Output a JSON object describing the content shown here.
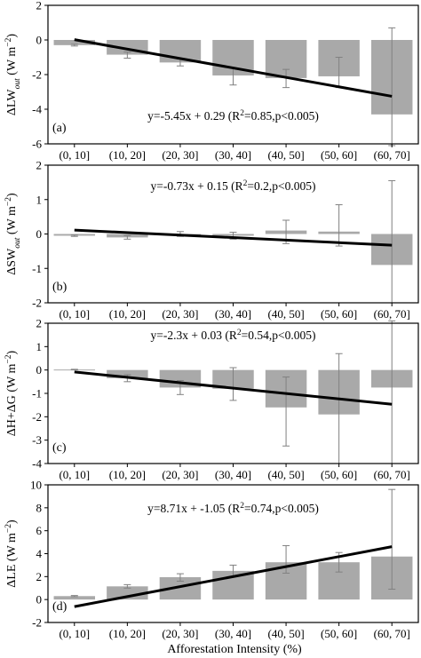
{
  "figure": {
    "xlabel": "Afforestation Intensity (%)",
    "colors": {
      "bar": "#a9a9a9",
      "error": "#808080",
      "fit": "#000000",
      "axis": "#000000"
    }
  },
  "chart_data": [
    {
      "type": "bar",
      "panel_label": "(a)",
      "ylabel_parts": [
        "ΔLW",
        "out",
        " (W m",
        "−2",
        ")"
      ],
      "equation_parts": [
        "y=-5.45x + 0.29 (R",
        "2",
        "=0.85,p<0.005)"
      ],
      "categories": [
        "(0, 10]",
        "(10, 20]",
        "(20, 30]",
        "(30, 40]",
        "(40, 50]",
        "(50, 60]",
        "(60, 70]"
      ],
      "values": [
        -0.3,
        -0.85,
        -1.3,
        -2.05,
        -2.2,
        -2.1,
        -4.3
      ],
      "error_low": [
        -0.35,
        -1.05,
        -1.5,
        -2.6,
        -2.75,
        -2.75,
        -6.1
      ],
      "error_high": [
        -0.25,
        -0.7,
        -1.1,
        -1.6,
        -1.7,
        -1.0,
        0.7
      ],
      "fit": {
        "slope": -5.45,
        "intercept": 0.29,
        "x_start": 0.05,
        "x_end": 0.65
      },
      "ylim": [
        -6,
        2
      ],
      "yticks": [
        -6,
        -4,
        -2,
        0,
        2
      ],
      "legend": "none",
      "grid": false
    },
    {
      "type": "bar",
      "panel_label": "(b)",
      "ylabel_parts": [
        "ΔSW",
        "out",
        " (W m",
        "−2",
        ")"
      ],
      "equation_parts": [
        "y=-0.73x + 0.15 (R",
        "2",
        "=0.2,p<0.005)"
      ],
      "categories": [
        "(0, 10]",
        "(10, 20]",
        "(20, 30]",
        "(30, 40]",
        "(40, 50]",
        "(50, 60]",
        "(60, 70]"
      ],
      "values": [
        -0.05,
        -0.1,
        0.0,
        -0.05,
        0.1,
        0.07,
        -0.9
      ],
      "error_low": [
        -0.07,
        -0.15,
        -0.07,
        -0.15,
        -0.28,
        -0.35,
        -2.0
      ],
      "error_high": [
        -0.03,
        -0.05,
        0.07,
        0.05,
        0.4,
        0.85,
        1.55
      ],
      "fit": {
        "slope": -0.73,
        "intercept": 0.15,
        "x_start": 0.05,
        "x_end": 0.65
      },
      "ylim": [
        -2,
        2
      ],
      "yticks": [
        -2,
        -1,
        0,
        1,
        2
      ],
      "legend": "none",
      "grid": false
    },
    {
      "type": "bar",
      "panel_label": "(c)",
      "ylabel_parts": [
        "ΔH+ΔG (W m",
        "−2",
        ")"
      ],
      "equation_parts": [
        "y=-2.3x + 0.03 (R",
        "2",
        "=0.54,p<0.005)"
      ],
      "categories": [
        "(0, 10]",
        "(10, 20]",
        "(20, 30]",
        "(30, 40]",
        "(40, 50]",
        "(50, 60]",
        "(60, 70]"
      ],
      "values": [
        0.02,
        -0.35,
        -0.75,
        -0.8,
        -1.6,
        -1.9,
        -0.75
      ],
      "error_low": [
        0.01,
        -0.5,
        -1.05,
        -1.3,
        -3.25,
        -4.0,
        -4.0
      ],
      "error_high": [
        0.03,
        -0.2,
        -0.45,
        0.1,
        -0.3,
        0.7,
        2.1
      ],
      "fit": {
        "slope": -2.3,
        "intercept": 0.03,
        "x_start": 0.05,
        "x_end": 0.65
      },
      "ylim": [
        -4,
        2
      ],
      "yticks": [
        -4,
        -3,
        -2,
        -1,
        0,
        1,
        2
      ],
      "legend": "none",
      "grid": false
    },
    {
      "type": "bar",
      "panel_label": "(d)",
      "ylabel_parts": [
        "ΔLE (W m",
        "−2",
        ")"
      ],
      "equation_parts": [
        "y=8.71x + -1.05 (R",
        "2",
        "=0.74,p<0.005)"
      ],
      "categories": [
        "(0, 10]",
        "(10, 20]",
        "(20, 30]",
        "(30, 40]",
        "(40, 50]",
        "(50, 60]",
        "(60, 70]"
      ],
      "values": [
        0.3,
        1.15,
        1.95,
        2.5,
        3.25,
        3.25,
        3.75
      ],
      "error_low": [
        0.25,
        1.0,
        1.6,
        2.0,
        2.3,
        2.4,
        0.9
      ],
      "error_high": [
        0.35,
        1.3,
        2.25,
        3.0,
        4.7,
        4.1,
        9.6
      ],
      "fit": {
        "slope": 8.71,
        "intercept": -1.05,
        "x_start": 0.05,
        "x_end": 0.65
      },
      "ylim": [
        -2,
        10
      ],
      "yticks": [
        -2,
        0,
        2,
        4,
        6,
        8,
        10
      ],
      "legend": "none",
      "grid": false
    }
  ]
}
